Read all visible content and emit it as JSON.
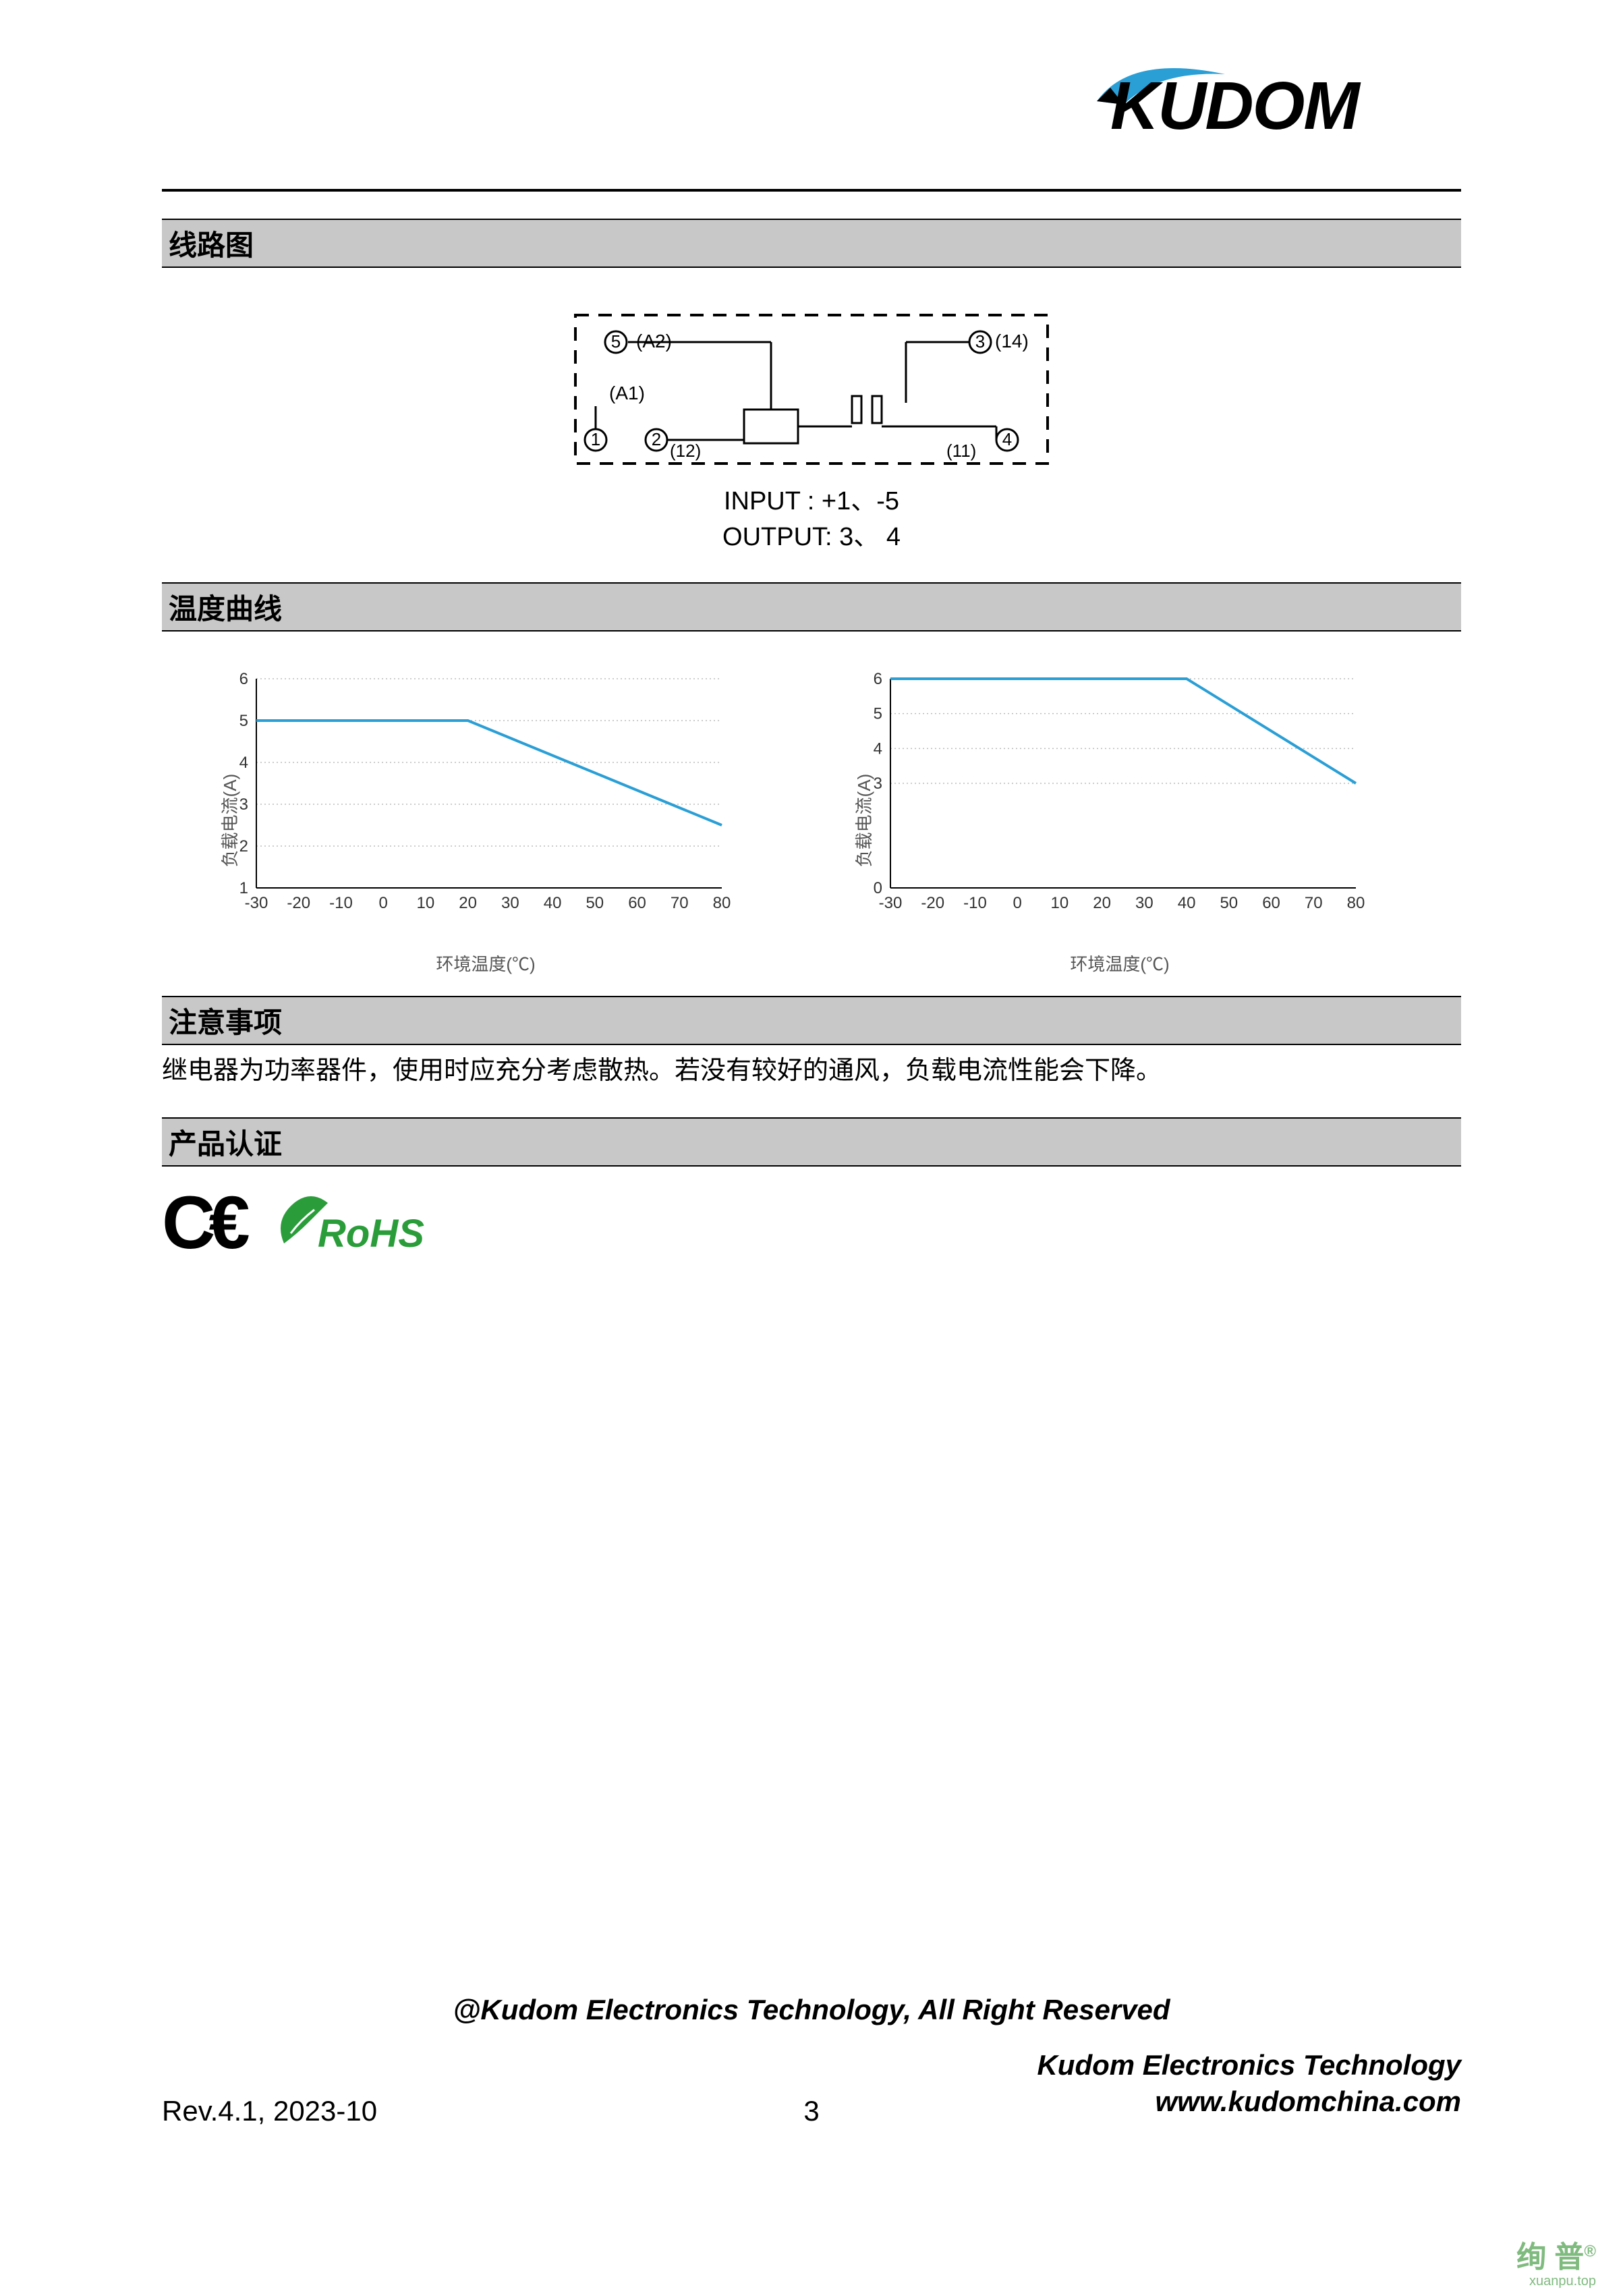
{
  "logo": {
    "text": "KUDOM",
    "swoosh_color": "#2a9fd6"
  },
  "sections": {
    "circuit": "线路图",
    "temp_curve": "温度曲线",
    "notes": "注意事项",
    "cert": "产品认证"
  },
  "circuit": {
    "labels": {
      "a2": "(A2)",
      "pin5": "5",
      "a1": "(A1)",
      "pin1": "1",
      "pin2": "2",
      "n12": "(12)",
      "pin3": "3",
      "n14": "(14)",
      "pin4": "4",
      "n11": "(11)"
    },
    "input_line": "INPUT   : +1、-5",
    "output_line": "OUTPUT:   3、  4"
  },
  "chart1": {
    "type": "line",
    "ylabel": "负载电流(A)",
    "xlabel": "环境温度(℃)",
    "x_ticks": [
      -30,
      -20,
      -10,
      0,
      10,
      20,
      30,
      40,
      50,
      60,
      70,
      80
    ],
    "y_ticks": [
      1,
      2,
      3,
      4,
      5,
      6
    ],
    "ylim": [
      1,
      6
    ],
    "xlim": [
      -30,
      80
    ],
    "line_color": "#2a9fd6",
    "grid_color": "#bbbbbb",
    "tick_fontsize": 24,
    "label_fontsize": 26,
    "data_x": [
      -30,
      20,
      80
    ],
    "data_y": [
      5,
      5,
      2.5
    ]
  },
  "chart2": {
    "type": "line",
    "ylabel": "负载电流(A)",
    "xlabel": "环境温度(℃)",
    "x_ticks": [
      -30,
      -20,
      -10,
      0,
      10,
      20,
      30,
      40,
      50,
      60,
      70,
      80
    ],
    "y_ticks": [
      0,
      3,
      4,
      5,
      6
    ],
    "ylim": [
      0,
      6
    ],
    "xlim": [
      -30,
      80
    ],
    "line_color": "#2a9fd6",
    "grid_color": "#bbbbbb",
    "tick_fontsize": 24,
    "label_fontsize": 26,
    "data_x": [
      -30,
      40,
      80
    ],
    "data_y": [
      6,
      6,
      3
    ]
  },
  "notes_text": "继电器为功率器件，使用时应充分考虑散热。若没有较好的通风，负载电流性能会下降。",
  "cert": {
    "ce": "CE",
    "rohs": "RoHS",
    "rohs_color": "#2a9d3a"
  },
  "footer": {
    "copyright": "@Kudom Electronics Technology, All Right Reserved",
    "company": "Kudom Electronics Technology",
    "url": "www.kudomchina.com",
    "rev": "Rev.4.1, 2023-10",
    "page": "3"
  },
  "watermark": {
    "text": "绚 普",
    "sub": "xuanpu.top"
  }
}
